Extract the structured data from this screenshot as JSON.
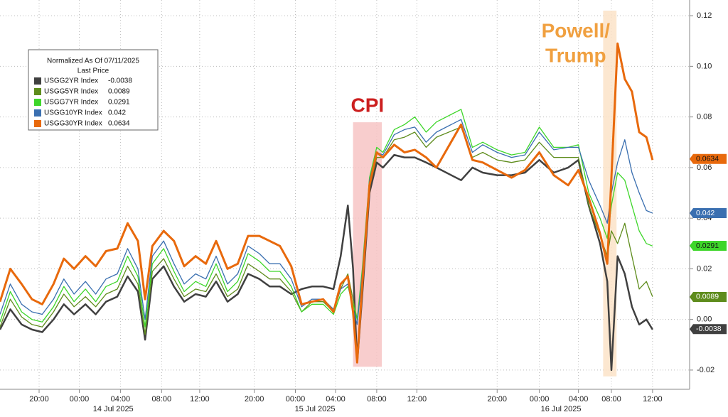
{
  "chart_data": {
    "type": "line",
    "legend_title": "Normalized As Of 07/11/2025",
    "legend_subtitle": "Last Price",
    "x": [
      0,
      1.0,
      2.1,
      3.1,
      4.1,
      5.2,
      6.2,
      7.2,
      8.3,
      9.3,
      10.3,
      11.4,
      12.4,
      13.4,
      14.1,
      14.8,
      15.9,
      16.9,
      17.9,
      19.0,
      20.0,
      21.0,
      22.1,
      23.1,
      24.1,
      25.2,
      26.2,
      27.2,
      28.3,
      29.3,
      30.3,
      31.4,
      32.4,
      33.1,
      33.8,
      34.3,
      34.7,
      35.2,
      35.9,
      36.6,
      37.2,
      38.3,
      39.3,
      40.3,
      41.4,
      42.4,
      44.8,
      45.9,
      46.9,
      48.3,
      49.7,
      51.0,
      52.4,
      53.8,
      55.2,
      56.2,
      57.2,
      58.3,
      59.0,
      59.4,
      60.0,
      60.7,
      61.4,
      62.1,
      62.8,
      63.4
    ],
    "xlim": [
      0,
      67
    ],
    "xticks": [
      {
        "value": 3.8,
        "label": "20:00"
      },
      {
        "value": 7.7,
        "label": "00:00"
      },
      {
        "value": 11.7,
        "label": "04:00"
      },
      {
        "value": 15.7,
        "label": "08:00"
      },
      {
        "value": 19.4,
        "label": "12:00"
      },
      {
        "value": 24.7,
        "label": "20:00"
      },
      {
        "value": 28.7,
        "label": "00:00"
      },
      {
        "value": 32.6,
        "label": "04:00"
      },
      {
        "value": 36.6,
        "label": "08:00"
      },
      {
        "value": 40.5,
        "label": "12:00"
      },
      {
        "value": 48.3,
        "label": "20:00"
      },
      {
        "value": 52.4,
        "label": "00:00"
      },
      {
        "value": 56.2,
        "label": "04:00"
      },
      {
        "value": 59.4,
        "label": "08:00"
      },
      {
        "value": 63.4,
        "label": "12:00"
      }
    ],
    "xdatelabels": [
      {
        "value": 11.0,
        "label": "14 Jul 2025"
      },
      {
        "value": 30.6,
        "label": "15 Jul 2025"
      },
      {
        "value": 54.5,
        "label": "16 Jul 2025"
      }
    ],
    "ylim": [
      -0.0276,
      0.1262
    ],
    "yticks": [
      0.12,
      {
        "value": 0.1,
        "label": "0.10"
      },
      0.08,
      0.06,
      0.04,
      0.02,
      {
        "value": 0,
        "label": "0.00"
      },
      -0.02
    ],
    "grid": true,
    "series": [
      {
        "name": "USGG2YR Index",
        "color": "#404040",
        "last_value": -0.0038,
        "values": [
          -0.004,
          0.004,
          -0.002,
          -0.004,
          -0.005,
          0.0,
          0.006,
          0.002,
          0.006,
          0.002,
          0.007,
          0.009,
          0.017,
          0.011,
          -0.008,
          0.016,
          0.021,
          0.013,
          0.007,
          0.01,
          0.009,
          0.015,
          0.007,
          0.01,
          0.018,
          0.016,
          0.013,
          0.013,
          0.01,
          0.012,
          0.013,
          0.013,
          0.012,
          0.025,
          0.045,
          0.02,
          -0.017,
          0.01,
          0.05,
          0.062,
          0.06,
          0.065,
          0.064,
          0.064,
          0.062,
          0.06,
          0.055,
          0.06,
          0.058,
          0.057,
          0.057,
          0.058,
          0.063,
          0.058,
          0.06,
          0.063,
          0.045,
          0.03,
          0.015,
          -0.02,
          0.025,
          0.018,
          0.005,
          -0.002,
          0.0,
          -0.004
        ]
      },
      {
        "name": "USGG5YR Index",
        "color": "#5e8c1c",
        "last_value": 0.0089,
        "values": [
          -0.003,
          0.008,
          0.001,
          -0.002,
          -0.003,
          0.003,
          0.01,
          0.005,
          0.009,
          0.005,
          0.01,
          0.012,
          0.021,
          0.014,
          -0.006,
          0.019,
          0.024,
          0.016,
          0.009,
          0.012,
          0.011,
          0.018,
          0.009,
          0.012,
          0.022,
          0.019,
          0.016,
          0.016,
          0.011,
          0.003,
          0.007,
          0.007,
          0.003,
          0.012,
          0.018,
          0.008,
          0.0,
          0.016,
          0.052,
          0.064,
          0.064,
          0.071,
          0.072,
          0.074,
          0.068,
          0.072,
          0.076,
          0.064,
          0.066,
          0.063,
          0.062,
          0.063,
          0.07,
          0.064,
          0.064,
          0.064,
          0.045,
          0.033,
          0.025,
          0.035,
          0.03,
          0.038,
          0.025,
          0.012,
          0.015,
          0.009
        ]
      },
      {
        "name": "USGG7YR Index",
        "color": "#3ed62a",
        "last_value": 0.0291,
        "values": [
          -0.001,
          0.011,
          0.003,
          0.0,
          -0.001,
          0.005,
          0.013,
          0.007,
          0.012,
          0.007,
          0.013,
          0.015,
          0.025,
          0.017,
          -0.003,
          0.022,
          0.028,
          0.019,
          0.011,
          0.015,
          0.013,
          0.022,
          0.011,
          0.015,
          0.026,
          0.023,
          0.019,
          0.019,
          0.013,
          0.003,
          0.006,
          0.006,
          0.002,
          0.01,
          0.013,
          0.006,
          0.0,
          0.02,
          0.056,
          0.068,
          0.066,
          0.075,
          0.077,
          0.08,
          0.074,
          0.078,
          0.083,
          0.068,
          0.07,
          0.067,
          0.065,
          0.066,
          0.076,
          0.068,
          0.068,
          0.069,
          0.05,
          0.04,
          0.032,
          0.045,
          0.058,
          0.055,
          0.045,
          0.035,
          0.03,
          0.029
        ]
      },
      {
        "name": "USGG10YR Index",
        "color": "#3a6fb0",
        "last_value": 0.042,
        "values": [
          0.002,
          0.014,
          0.006,
          0.003,
          0.002,
          0.008,
          0.016,
          0.01,
          0.015,
          0.01,
          0.016,
          0.018,
          0.028,
          0.02,
          0.0,
          0.025,
          0.031,
          0.022,
          0.014,
          0.018,
          0.016,
          0.025,
          0.014,
          0.018,
          0.029,
          0.026,
          0.022,
          0.022,
          0.016,
          0.005,
          0.008,
          0.008,
          0.004,
          0.012,
          0.014,
          0.004,
          -0.002,
          0.018,
          0.055,
          0.066,
          0.065,
          0.073,
          0.075,
          0.076,
          0.07,
          0.074,
          0.079,
          0.066,
          0.069,
          0.066,
          0.064,
          0.065,
          0.074,
          0.067,
          0.068,
          0.068,
          0.055,
          0.045,
          0.038,
          0.05,
          0.062,
          0.071,
          0.058,
          0.05,
          0.043,
          0.042
        ]
      },
      {
        "name": "USGG30YR Index",
        "color": "#e8690c",
        "last_value": 0.0634,
        "values": [
          0.007,
          0.02,
          0.014,
          0.008,
          0.006,
          0.014,
          0.024,
          0.02,
          0.025,
          0.021,
          0.027,
          0.028,
          0.038,
          0.031,
          0.008,
          0.029,
          0.035,
          0.031,
          0.021,
          0.025,
          0.022,
          0.031,
          0.02,
          0.022,
          0.033,
          0.033,
          0.031,
          0.029,
          0.021,
          0.006,
          0.007,
          0.008,
          0.003,
          0.014,
          0.017,
          0.003,
          -0.017,
          0.014,
          0.053,
          0.066,
          0.064,
          0.069,
          0.066,
          0.067,
          0.064,
          0.06,
          0.077,
          0.063,
          0.062,
          0.059,
          0.056,
          0.059,
          0.066,
          0.057,
          0.053,
          0.059,
          0.048,
          0.034,
          0.022,
          0.056,
          0.109,
          0.095,
          0.09,
          0.074,
          0.072,
          0.063
        ]
      }
    ],
    "shaded_regions": [
      {
        "lines": [
          "CPI"
        ],
        "color": "#cc1f1f",
        "fill": "#f7c4c4",
        "x": [
          34.3,
          37.1
        ],
        "y": [
          -0.0187,
          0.0779
        ]
      },
      {
        "lines": [
          "Powell/",
          "Trump"
        ],
        "color": "#f0a040",
        "fill": "#fbe3c8",
        "x": [
          58.6,
          59.9
        ],
        "y": [
          -0.0225,
          0.122
        ]
      }
    ]
  }
}
